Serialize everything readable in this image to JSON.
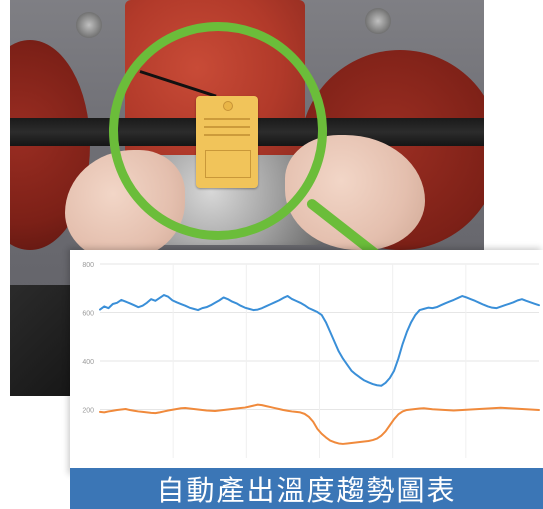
{
  "caption": {
    "text": "自動產出溫度趨勢圖表"
  },
  "colors": {
    "highlight": "#6bbd3a",
    "caption_bg": "#3b76b6",
    "series_primary": "#3a8fd8",
    "series_secondary": "#f08a3c"
  },
  "chart_data": {
    "type": "line",
    "title": "",
    "xlabel": "",
    "ylabel": "",
    "y_ticks": [
      "800",
      "600",
      "400",
      "200"
    ],
    "ylim": [
      0,
      800
    ],
    "grid": true,
    "series": [
      {
        "color": "#3a8fd8",
        "values": [
          612,
          625,
          618,
          635,
          640,
          652,
          645,
          638,
          630,
          622,
          628,
          640,
          655,
          648,
          660,
          672,
          665,
          650,
          642,
          635,
          628,
          620,
          615,
          610,
          618,
          622,
          630,
          640,
          650,
          662,
          655,
          645,
          638,
          628,
          620,
          615,
          610,
          612,
          618,
          626,
          634,
          642,
          650,
          660,
          668,
          656,
          648,
          640,
          630,
          618,
          610,
          602,
          590,
          560,
          520,
          480,
          440,
          410,
          385,
          360,
          345,
          332,
          320,
          312,
          305,
          300,
          298,
          310,
          330,
          360,
          410,
          470,
          520,
          560,
          590,
          610,
          615,
          620,
          618,
          622,
          630,
          638,
          645,
          652,
          660,
          668,
          662,
          655,
          648,
          640,
          632,
          625,
          620,
          618,
          624,
          630,
          636,
          642,
          650,
          655,
          648,
          642,
          636,
          630
        ]
      },
      {
        "color": "#f08a3c",
        "values": [
          190,
          188,
          192,
          195,
          198,
          200,
          202,
          198,
          195,
          192,
          190,
          188,
          186,
          185,
          188,
          192,
          196,
          199,
          202,
          205,
          206,
          204,
          202,
          200,
          198,
          196,
          195,
          194,
          196,
          198,
          200,
          202,
          204,
          206,
          208,
          212,
          216,
          220,
          218,
          214,
          210,
          206,
          202,
          198,
          195,
          192,
          190,
          188,
          182,
          170,
          150,
          120,
          100,
          85,
          72,
          65,
          60,
          58,
          60,
          62,
          64,
          66,
          68,
          70,
          74,
          80,
          92,
          110,
          135,
          160,
          180,
          192,
          198,
          200,
          202,
          204,
          205,
          203,
          201,
          200,
          199,
          198,
          197,
          196,
          197,
          198,
          199,
          200,
          201,
          202,
          203,
          204,
          205,
          206,
          207,
          206,
          205,
          204,
          203,
          202,
          201,
          200,
          199,
          198
        ]
      }
    ]
  }
}
